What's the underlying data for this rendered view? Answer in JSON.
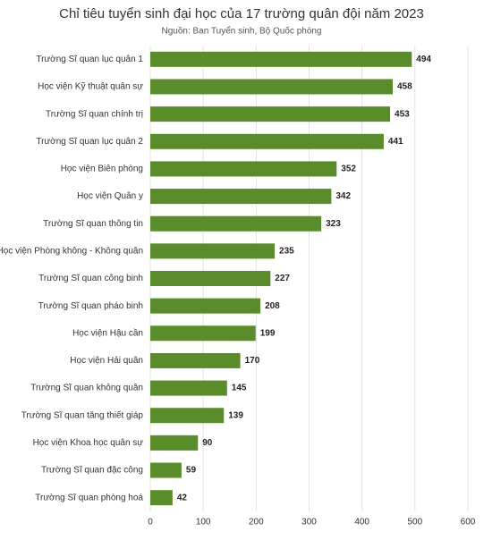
{
  "chart_data": {
    "type": "bar",
    "orientation": "horizontal",
    "title": "Chỉ tiêu tuyển sinh đại học của 17 trường quân đội năm 2023",
    "subtitle": "Nguồn: Ban Tuyển sinh, Bộ Quốc phòng",
    "categories": [
      "Trường Sĩ quan lục quân 1",
      "Học viện Kỹ thuật quân sự",
      "Trường Sĩ quan chính trị",
      "Trường Sĩ quan lục quân 2",
      "Học viện Biên phòng",
      "Học viện Quân y",
      "Trường Sĩ quan thông tin",
      "Học viện Phòng không - Không quân",
      "Trường Sĩ quan công binh",
      "Trường Sĩ quan pháo binh",
      "Học viện Hậu cần",
      "Học viện Hải quân",
      "Trường Sĩ quan không quân",
      "Trường Sĩ quan tăng thiết giáp",
      "Học viện Khoa học quân sự",
      "Trường Sĩ quan đặc công",
      "Trường Sĩ quan phòng hoá"
    ],
    "values": [
      494,
      458,
      453,
      441,
      352,
      342,
      323,
      235,
      227,
      208,
      199,
      170,
      145,
      139,
      90,
      59,
      42
    ],
    "color": "#5b8c2b",
    "xlim": [
      0,
      600
    ],
    "xticks": [
      0,
      100,
      200,
      300,
      400,
      500,
      600
    ],
    "grid": true
  }
}
